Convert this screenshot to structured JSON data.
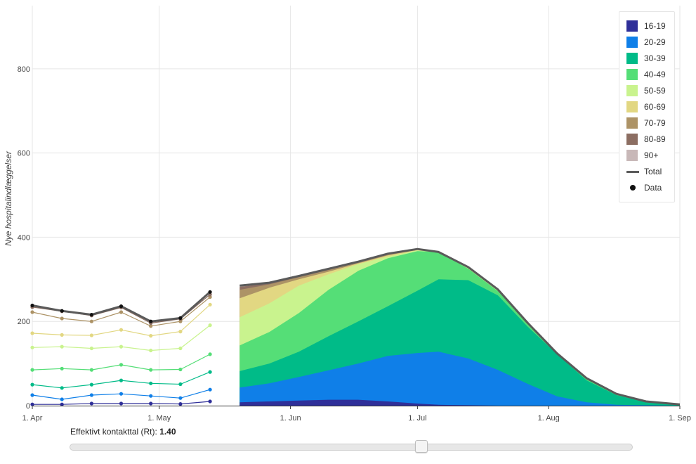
{
  "chart_data": {
    "type": "area",
    "ylabel": "Nye hospitalindlæggelser",
    "ylim": [
      0,
      950
    ],
    "yticks": [
      0,
      200,
      400,
      600,
      800
    ],
    "x_range": [
      "2020-04-01",
      "2020-09-01"
    ],
    "xticks": [
      {
        "date": "2020-04-01",
        "label": "1. Apr"
      },
      {
        "date": "2020-05-01",
        "label": "1. May"
      },
      {
        "date": "2020-06-01",
        "label": "1. Jun"
      },
      {
        "date": "2020-07-01",
        "label": "1. Jul"
      },
      {
        "date": "2020-08-01",
        "label": "1. Aug"
      },
      {
        "date": "2020-09-01",
        "label": "1. Sep"
      }
    ],
    "grid": true,
    "legend_position": "top-right",
    "colors": {
      "16-19": "#2f2f99",
      "20-29": "#0f7fe8",
      "30-39": "#00bb88",
      "40-49": "#55de77",
      "50-59": "#c9f38e",
      "60-69": "#e2d782",
      "70-79": "#ad9366",
      "80-89": "#8c6e62",
      "90+": "#c8b8b8",
      "Total": "#5a5a5a"
    },
    "observed": {
      "dates": [
        "2020-04-01",
        "2020-04-08",
        "2020-04-15",
        "2020-04-22",
        "2020-04-29",
        "2020-05-06",
        "2020-05-13"
      ],
      "series": [
        {
          "name": "16-19",
          "values": [
            3,
            3,
            5,
            5,
            5,
            4,
            10
          ]
        },
        {
          "name": "20-29",
          "values": [
            25,
            15,
            25,
            28,
            23,
            18,
            38
          ]
        },
        {
          "name": "30-39",
          "values": [
            50,
            42,
            50,
            60,
            53,
            51,
            80
          ]
        },
        {
          "name": "40-49",
          "values": [
            85,
            88,
            85,
            97,
            85,
            86,
            122
          ]
        },
        {
          "name": "50-59",
          "values": [
            138,
            140,
            136,
            140,
            131,
            136,
            191
          ]
        },
        {
          "name": "60-69",
          "values": [
            172,
            168,
            167,
            180,
            166,
            176,
            240
          ]
        },
        {
          "name": "70-79",
          "values": [
            222,
            207,
            200,
            222,
            189,
            200,
            258
          ]
        },
        {
          "name": "80-89",
          "values": [
            234,
            224,
            214,
            233,
            196,
            206,
            264
          ]
        },
        {
          "name": "Total",
          "values": [
            238,
            225,
            216,
            236,
            200,
            208,
            270
          ]
        }
      ]
    },
    "projection": {
      "dates": [
        "2020-05-20",
        "2020-05-27",
        "2020-06-03",
        "2020-06-10",
        "2020-06-17",
        "2020-06-24",
        "2020-07-01",
        "2020-07-06",
        "2020-07-13",
        "2020-07-20",
        "2020-07-27",
        "2020-08-03",
        "2020-08-10",
        "2020-08-17",
        "2020-08-24",
        "2020-09-01"
      ],
      "stacked_tops": {
        "16-19": [
          8,
          10,
          12,
          14,
          14,
          10,
          5,
          2,
          1,
          0,
          0,
          0,
          0,
          0,
          0,
          0
        ],
        "20-29": [
          43,
          53,
          68,
          84,
          100,
          118,
          125,
          128,
          112,
          85,
          52,
          22,
          8,
          2,
          1,
          0
        ],
        "30-39": [
          82,
          100,
          128,
          165,
          200,
          236,
          273,
          300,
          298,
          262,
          188,
          122,
          60,
          25,
          8,
          2
        ],
        "40-49": [
          143,
          175,
          220,
          275,
          320,
          350,
          367,
          365,
          325,
          272,
          195,
          122,
          63,
          26,
          9,
          3
        ],
        "50-59": [
          210,
          243,
          285,
          312,
          336,
          354,
          369,
          364,
          327,
          274,
          196,
          123,
          64,
          27,
          10,
          3
        ],
        "60-69": [
          255,
          280,
          300,
          318,
          338,
          357,
          370,
          364,
          328,
          275,
          196,
          123,
          64,
          27,
          10,
          3
        ],
        "70-79": [
          275,
          288,
          305,
          322,
          340,
          359,
          371,
          364,
          328,
          275,
          197,
          124,
          65,
          28,
          10,
          3
        ],
        "80-89": [
          282,
          291,
          307,
          324,
          341,
          360,
          371,
          364,
          329,
          275,
          197,
          124,
          65,
          28,
          10,
          3
        ],
        "90+": [
          285,
          292,
          308,
          325,
          342,
          361,
          372,
          365,
          329,
          276,
          197,
          124,
          65,
          28,
          10,
          3
        ],
        "Total": [
          285,
          292,
          308,
          325,
          342,
          361,
          372,
          365,
          329,
          276,
          197,
          124,
          65,
          28,
          10,
          3
        ]
      }
    },
    "legend": [
      {
        "name": "16-19",
        "kind": "area"
      },
      {
        "name": "20-29",
        "kind": "area"
      },
      {
        "name": "30-39",
        "kind": "area"
      },
      {
        "name": "40-49",
        "kind": "area"
      },
      {
        "name": "50-59",
        "kind": "area"
      },
      {
        "name": "60-69",
        "kind": "area"
      },
      {
        "name": "70-79",
        "kind": "area"
      },
      {
        "name": "80-89",
        "kind": "area"
      },
      {
        "name": "90+",
        "kind": "area"
      },
      {
        "name": "Total",
        "kind": "line"
      },
      {
        "name": "Data",
        "kind": "dot"
      }
    ]
  },
  "slider": {
    "label": "Effektivt kontakttal (Rt):",
    "value": "1.40",
    "position_fraction": 0.625
  }
}
